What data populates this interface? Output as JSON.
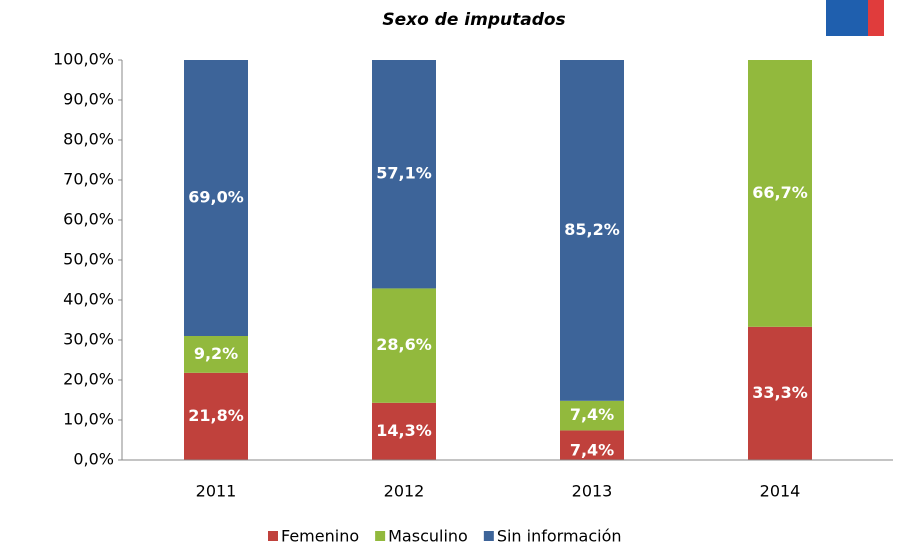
{
  "chart_data": {
    "type": "stacked_bar",
    "title": "Sexo de imputados",
    "categories": [
      "2011",
      "2012",
      "2013",
      "2014"
    ],
    "series": [
      {
        "name": "Femenino",
        "color": "#c0413c",
        "values": [
          21.8,
          14.3,
          7.4,
          33.3
        ],
        "value_labels": [
          "21,8%",
          "14,3%",
          "7,4%",
          "33,3%"
        ]
      },
      {
        "name": "Masculino",
        "color": "#92b93d",
        "values": [
          9.2,
          28.6,
          7.4,
          66.7
        ],
        "value_labels": [
          "9,2%",
          "28,6%",
          "7,4%",
          "66,7%"
        ]
      },
      {
        "name": "Sin información",
        "color": "#3d6499",
        "values": [
          69.0,
          57.1,
          85.2,
          0
        ],
        "value_labels": [
          "69,0%",
          "57,1%",
          "85,2%",
          null
        ]
      }
    ],
    "ylim": [
      0,
      100
    ],
    "yticks": [
      {
        "value": 0,
        "label": "0,0%"
      },
      {
        "value": 10,
        "label": "10,0%"
      },
      {
        "value": 20,
        "label": "20,0%"
      },
      {
        "value": 30,
        "label": "30,0%"
      },
      {
        "value": 40,
        "label": "40,0%"
      },
      {
        "value": 50,
        "label": "50,0%"
      },
      {
        "value": 60,
        "label": "60,0%"
      },
      {
        "value": 70,
        "label": "70,0%"
      },
      {
        "value": 80,
        "label": "80,0%"
      },
      {
        "value": 90,
        "label": "90,0%"
      },
      {
        "value": 100,
        "label": "100,0%"
      }
    ],
    "grid": false,
    "legend": "bottom"
  }
}
